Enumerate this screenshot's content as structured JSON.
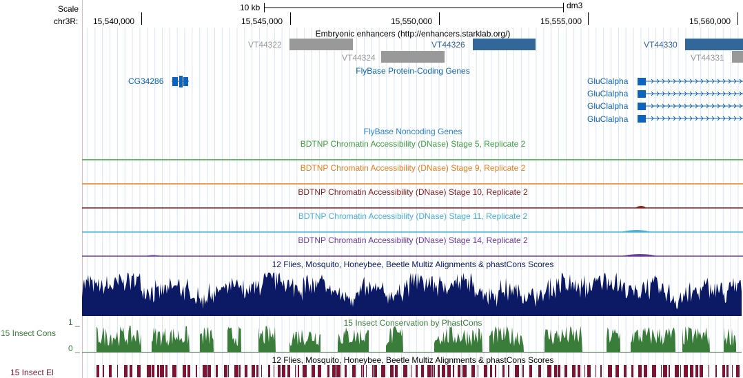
{
  "scale": {
    "label": "Scale",
    "bar_label": "10 kb",
    "assembly": "dm3"
  },
  "ruler": {
    "chrom_label": "chr3R:",
    "ticks": [
      "15,540,000",
      "15,545,000",
      "15,550,000",
      "15,555,000",
      "15,560,000"
    ]
  },
  "tracks": {
    "enhancers": {
      "title": "Embryonic enhancers (http://enhancers.starklab.org/)",
      "items": [
        {
          "name": "VT44322",
          "color": "#999999"
        },
        {
          "name": "VT44324",
          "color": "#999999"
        },
        {
          "name": "VT44326",
          "color": "#336699"
        },
        {
          "name": "VT44330",
          "color": "#336699"
        },
        {
          "name": "VT44331",
          "color": "#999999"
        }
      ]
    },
    "flybase_coding": {
      "title": "FlyBase Protein-Coding Genes",
      "color": "#0c64c0",
      "genes": [
        "CG34286",
        "GluClalpha",
        "GluClalpha",
        "GluClalpha",
        "GluClalpha"
      ]
    },
    "flybase_noncoding": {
      "title": "FlyBase Noncoding Genes",
      "color": "#2a82d6"
    },
    "dnase": [
      {
        "title": "BDTNP Chromatin Accessibility (DNase) Stage 5, Replicate 2",
        "color": "#3c9e3c"
      },
      {
        "title": "BDTNP Chromatin Accessibility (DNase) Stage 9, Replicate 2",
        "color": "#ef7c1a"
      },
      {
        "title": "BDTNP Chromatin Accessibility (DNase) Stage 10, Replicate 2",
        "color": "#8b1a1a"
      },
      {
        "title": "BDTNP Chromatin Accessibility (DNase) Stage 11, Replicate 2",
        "color": "#4ab0d6"
      },
      {
        "title": "BDTNP Chromatin Accessibility (DNase) Stage 14, Replicate 2",
        "color": "#6a3aa0"
      }
    ],
    "multiz": {
      "title": "12 Flies, Mosquito, Honeybee, Beetle Multiz Alignments & phastCons Scores",
      "color": "#0c1a66"
    },
    "insect_cons": {
      "title": "15 Insect Conservation by PhastCons",
      "side_label": "15 Insect Cons",
      "axis_top": "1 _",
      "axis_bottom": "0 _",
      "color": "#3a7d3a"
    },
    "multiz2": {
      "title": "12 Flies, Mosquito, Honeybee, Beetle Multiz Alignments & phastCons Scores"
    },
    "insect_el": {
      "side_label": "15 Insect El",
      "color": "#7d1432"
    }
  }
}
